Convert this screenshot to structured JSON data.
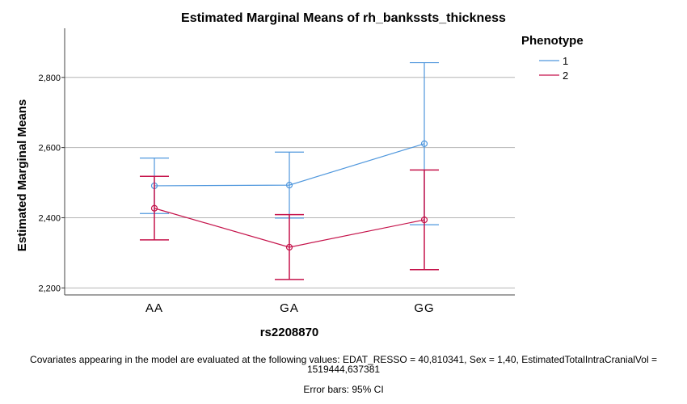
{
  "chart_data": {
    "type": "line",
    "title": "Estimated Marginal Means of rh_bankssts_thickness",
    "xlabel": "rs2208870",
    "ylabel": "Estimated Marginal Means",
    "categories": [
      "AA",
      "GA",
      "GG"
    ],
    "ylim": [
      2.18,
      2.94
    ],
    "yticks": [
      2.2,
      2.4,
      2.6,
      2.8
    ],
    "ytick_labels": [
      "2,200",
      "2,400",
      "2,600",
      "2,800"
    ],
    "grid": true,
    "legend": {
      "title": "Phenotype",
      "placement": "top-right"
    },
    "error_bars": "95% CI",
    "series": [
      {
        "name": "1",
        "color": "#4f97dd",
        "values": [
          2.491,
          2.493,
          2.611
        ],
        "lower": [
          2.412,
          2.399,
          2.38
        ],
        "upper": [
          2.57,
          2.587,
          2.842
        ]
      },
      {
        "name": "2",
        "color": "#c5124a",
        "values": [
          2.427,
          2.316,
          2.394
        ],
        "lower": [
          2.337,
          2.224,
          2.252
        ],
        "upper": [
          2.518,
          2.409,
          2.536
        ]
      }
    ]
  },
  "footnotes": {
    "covariates_line1": "Covariates appearing in the model are evaluated at the following values: EDAT_RESSO = 40,810341, Sex = 1,40, EstimatedTotalIntraCranialVol =",
    "covariates_line2": "1519444,637381",
    "error_bars": "Error bars: 95% CI"
  }
}
